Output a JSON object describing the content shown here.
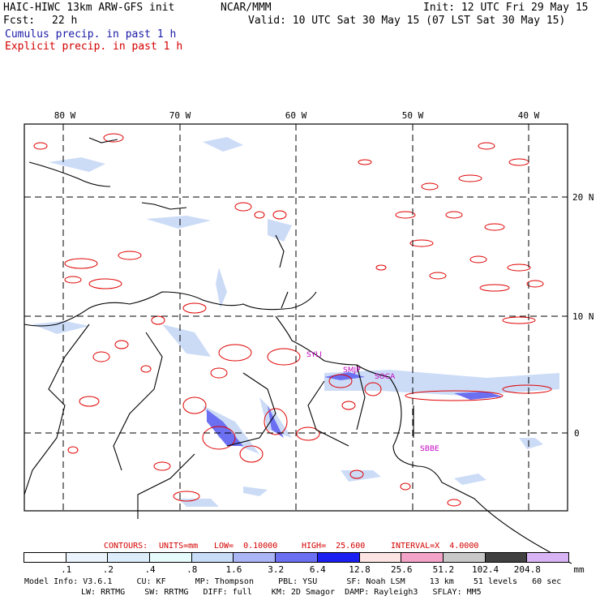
{
  "header": {
    "model_title": "HAIC-HIWC 13km ARW-GFS init",
    "agency": "NCAR/MMM",
    "init": "Init: 12 UTC Fri 29 May 15",
    "fcst_label": "Fcst:",
    "fcst_value": "22 h",
    "valid": "Valid: 10 UTC Sat 30 May 15 (07 LST Sat 30 May 15)",
    "legend_cumulus": "Cumulus precip. in past 1 h",
    "legend_explicit": "Explicit precip. in past 1 h"
  },
  "map": {
    "lon_labels": [
      "80 W",
      "70 W",
      "60 W",
      "50 W",
      "40 W"
    ],
    "lat_labels": [
      "20 N",
      "10 N",
      "0"
    ],
    "stations": [
      "SMJP",
      "SOCA",
      "SBBE",
      "SYLI"
    ]
  },
  "contours": {
    "prefix": "CONTOURS:",
    "units": "UNITS=mm",
    "low": "LOW=  0.10000",
    "high": "HIGH=  25.600",
    "interval": "INTERVAL=X  4.0000"
  },
  "colorbar": {
    "labels": [
      ".1",
      ".2",
      ".4",
      ".8",
      "1.6",
      "3.2",
      "6.4",
      "12.8",
      "25.6",
      "51.2",
      "102.4",
      "204.8"
    ],
    "unit": "mm",
    "colors": [
      "#ffffff",
      "#ebf4fc",
      "#dcecfa",
      "#e6fbfb",
      "#c8dcf8",
      "#a9b5f5",
      "#6b6ff2",
      "#1a1ef0",
      "#fde4e4",
      "#f3a3c8",
      "#c8c8c8",
      "#404040",
      "#d8b4f4"
    ]
  },
  "footer": {
    "line1": "Model Info: V3.6.1     CU: KF      MP: Thompson     PBL: YSU      SF: Noah LSM     13 km    51 levels   60 sec",
    "line2": "LW: RRTMG    SW: RRTMG   DIFF: full    KM: 2D Smagor  DAMP: Rayleigh3   SFLAY: MM5"
  }
}
